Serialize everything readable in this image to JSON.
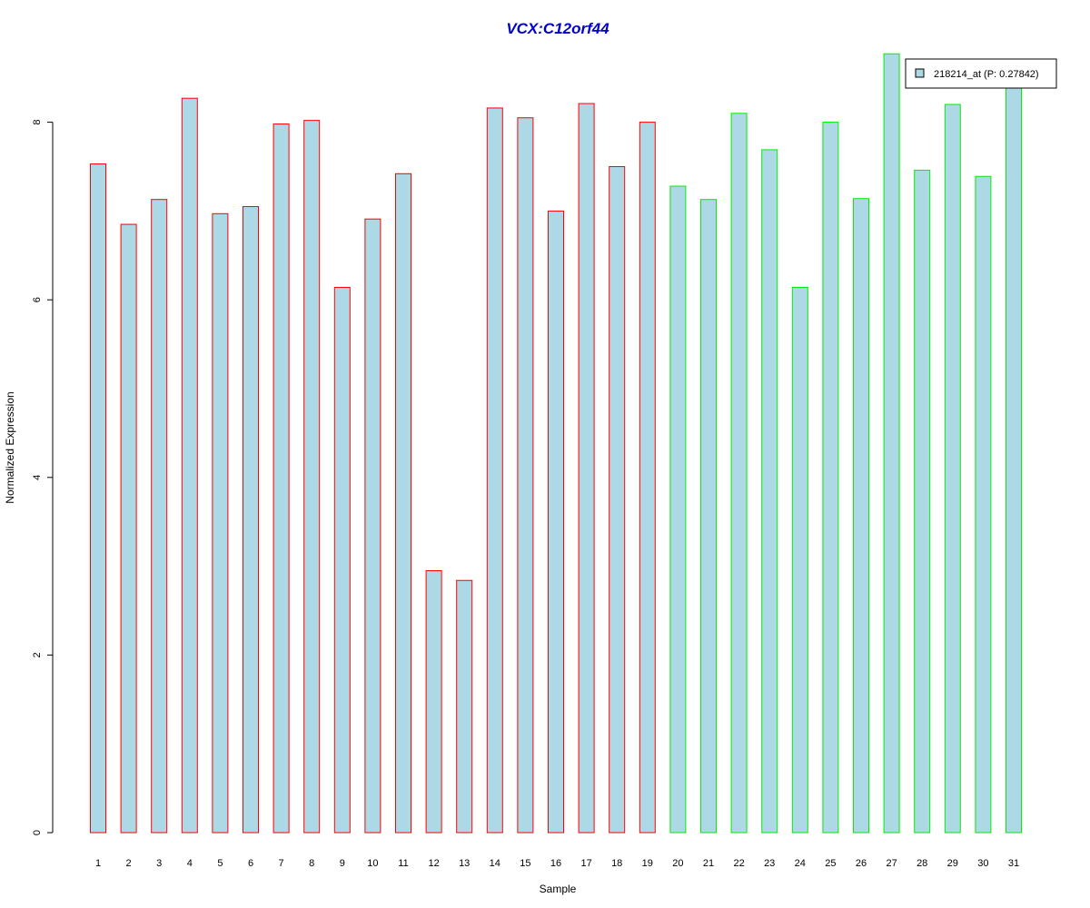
{
  "chart_data": {
    "type": "bar",
    "title": "VCX:C12orf44",
    "xlabel": "Sample",
    "ylabel": "Normalized Expression",
    "ylim": [
      0,
      8.8
    ],
    "yticks": [
      0,
      2,
      4,
      6,
      8
    ],
    "grid": false,
    "legend": {
      "placement": "top-right",
      "entries": [
        "218214_at (P: 0.27842)"
      ]
    },
    "fill_color": "#add8e6",
    "group_colors": {
      "group1": "#ff0000",
      "group2": "#00ee00"
    },
    "categories": [
      "1",
      "2",
      "3",
      "4",
      "5",
      "6",
      "7",
      "8",
      "9",
      "10",
      "11",
      "12",
      "13",
      "14",
      "15",
      "16",
      "17",
      "18",
      "19",
      "20",
      "21",
      "22",
      "23",
      "24",
      "25",
      "26",
      "27",
      "28",
      "29",
      "30",
      "31"
    ],
    "values": [
      7.53,
      6.85,
      7.13,
      8.27,
      6.97,
      7.05,
      7.98,
      8.02,
      6.14,
      6.91,
      7.42,
      2.95,
      2.84,
      8.16,
      8.05,
      7.0,
      8.21,
      7.5,
      8.0,
      7.28,
      7.13,
      8.1,
      7.69,
      6.14,
      8.0,
      7.14,
      8.77,
      7.46,
      8.2,
      7.39,
      8.42
    ],
    "groups": [
      1,
      1,
      1,
      1,
      1,
      1,
      1,
      1,
      1,
      1,
      1,
      1,
      1,
      1,
      1,
      1,
      1,
      1,
      1,
      2,
      2,
      2,
      2,
      2,
      2,
      2,
      2,
      2,
      2,
      2,
      2
    ]
  }
}
